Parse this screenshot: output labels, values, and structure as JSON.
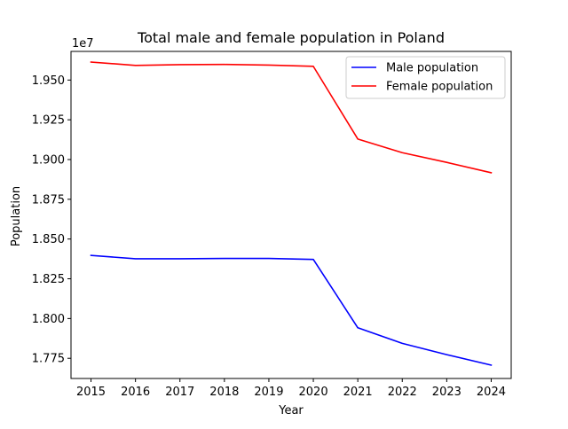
{
  "chart_data": {
    "type": "line",
    "title": "Total male and female population in Poland",
    "xlabel": "Year",
    "ylabel": "Population",
    "offset_text": "1e7",
    "x": [
      2015,
      2016,
      2017,
      2018,
      2019,
      2020,
      2021,
      2022,
      2023,
      2024
    ],
    "xlim": [
      2014.55,
      2024.45
    ],
    "ylim": [
      17623000,
      19680000
    ],
    "yticks": [
      17750000,
      18000000,
      18250000,
      18500000,
      18750000,
      19000000,
      19250000,
      19500000
    ],
    "ytick_labels": [
      "1.775",
      "1.800",
      "1.825",
      "1.850",
      "1.875",
      "1.900",
      "1.925",
      "1.950"
    ],
    "xtick_labels": [
      "2015",
      "2016",
      "2017",
      "2018",
      "2019",
      "2020",
      "2021",
      "2022",
      "2023",
      "2024"
    ],
    "grid": false,
    "legend_position": "upper right",
    "series": [
      {
        "name": "Male population",
        "color": "#0000ff",
        "values": [
          18397000,
          18376000,
          18376000,
          18378000,
          18378000,
          18372000,
          17942000,
          17844000,
          17773000,
          17707000
        ]
      },
      {
        "name": "Female population",
        "color": "#ff0000",
        "values": [
          19613000,
          19592000,
          19597000,
          19598000,
          19594000,
          19586000,
          19129000,
          19043000,
          18982000,
          18917000
        ]
      }
    ]
  }
}
